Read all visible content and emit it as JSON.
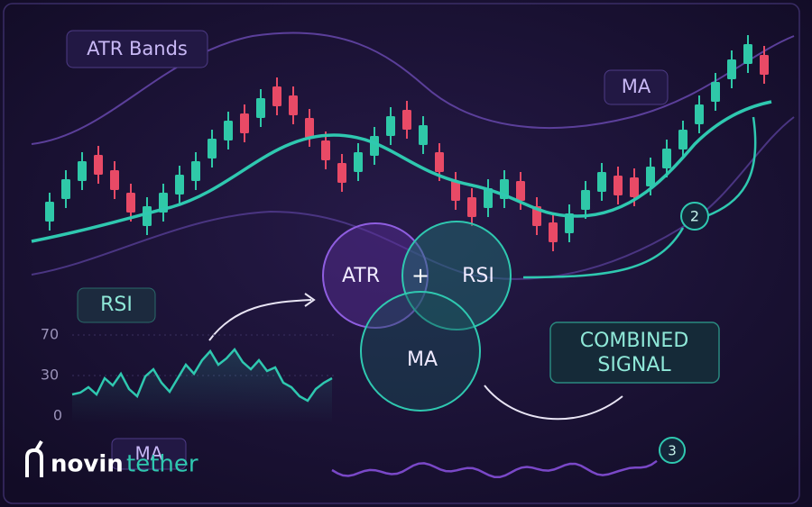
{
  "labels": {
    "atr_bands": "ATR Bands",
    "ma": "MA",
    "rsi": "RSI",
    "combined_signal": [
      "COMBINED",
      "SIGNAL"
    ],
    "hidden_box": "MA"
  },
  "venn": {
    "atr": "ATR",
    "plus": "+",
    "rsi": "RSI",
    "ma": "MA"
  },
  "rsi_axis": {
    "ticks": [
      "70",
      "30",
      "0"
    ]
  },
  "markers": {
    "step2": "2",
    "step3": "3"
  },
  "logo": {
    "part1": "novin",
    "part2": "tether"
  }
}
